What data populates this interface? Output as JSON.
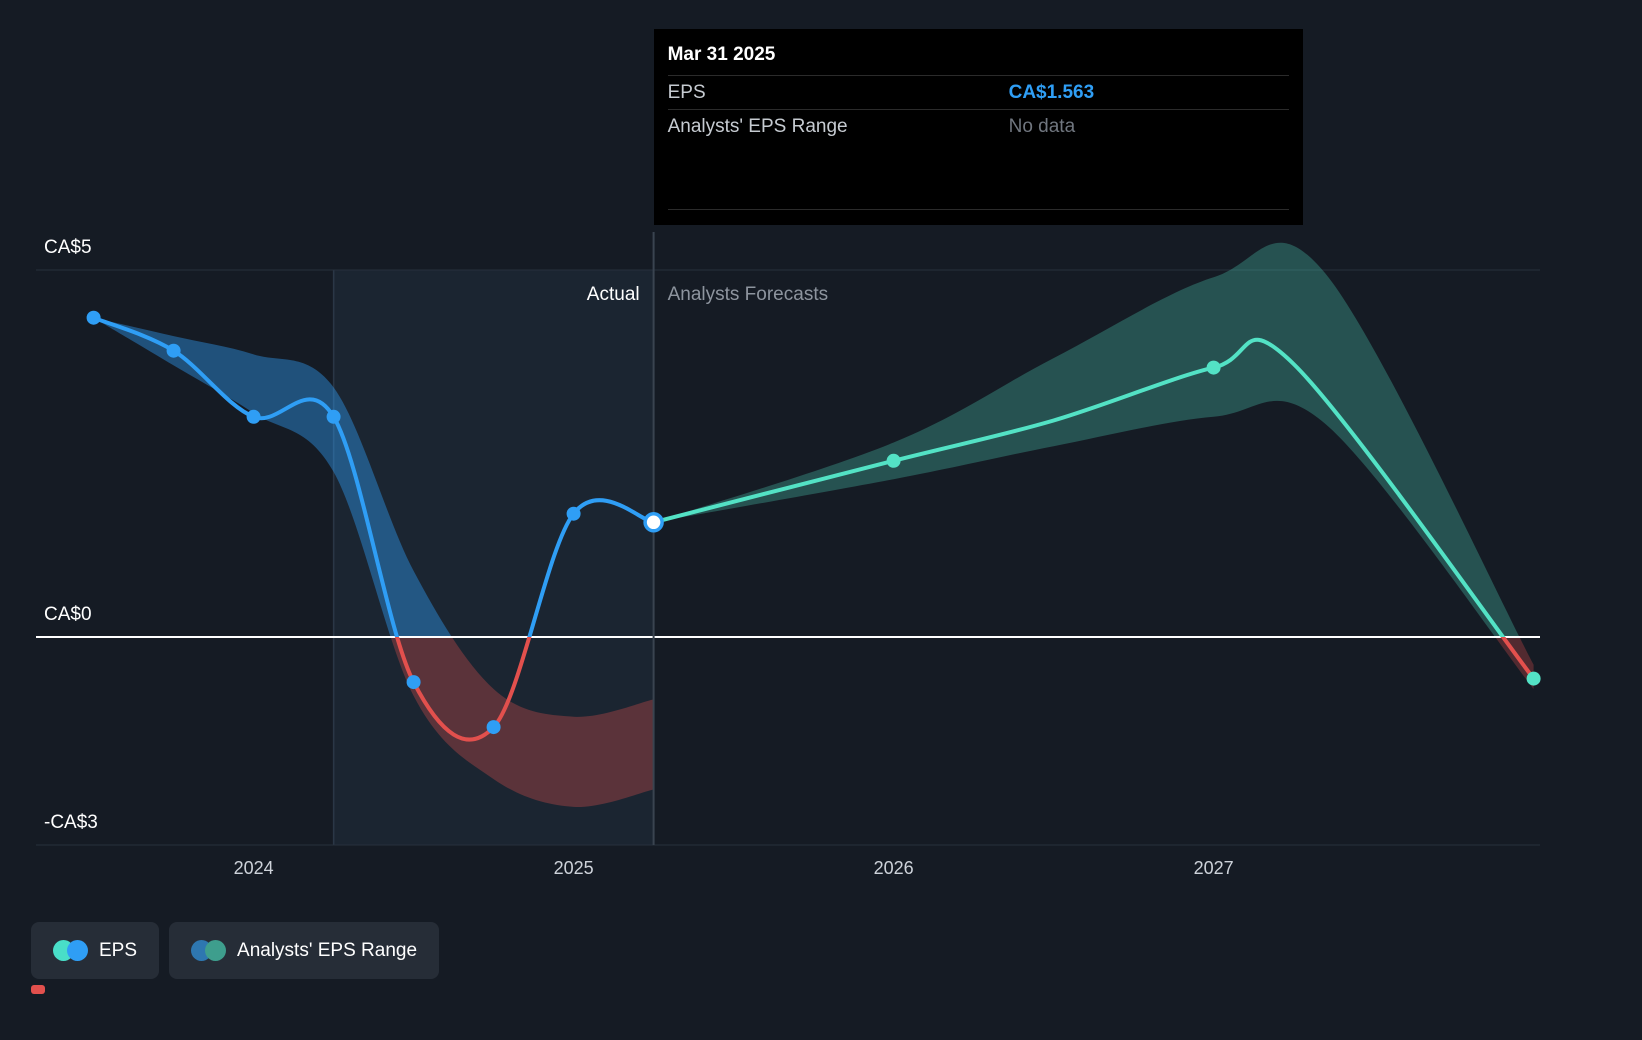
{
  "tooltip": {
    "date": "Mar 31 2025",
    "rows": [
      {
        "label": "EPS",
        "value": "CA$1.563"
      },
      {
        "label": "Analysts' EPS Range",
        "value": "No data"
      }
    ]
  },
  "annotations": {
    "actual": "Actual",
    "forecast": "Analysts Forecasts"
  },
  "legend": [
    {
      "label": "EPS",
      "dot_colors": [
        "#49dec8",
        "#2f9ef5"
      ]
    },
    {
      "label": "Analysts' EPS Range",
      "dot_colors": [
        "#2e77b0",
        "#3e9e8d"
      ]
    }
  ],
  "colors": {
    "background": "#151b24",
    "eps_line": "#2f9ef5",
    "negative_line": "#e2504d",
    "forecast_line": "#53e2c5",
    "actual_band": "rgba(47,158,245,0.42)",
    "actual_band_negative": "rgba(226,80,77,0.32)",
    "forecast_band": "rgba(83,226,197,0.28)",
    "forecast_band_negative": "rgba(226,80,77,0.30)",
    "zero_line": "#ffffff",
    "gridline": "#27303d",
    "divider": "#3a4450",
    "highlight": "rgba(110,165,230,0.07)",
    "highlight_edge": "rgba(148,184,225,0.16)",
    "tooltip_value_blue": "#2f9ef5",
    "tooltip_muted": "#70767f"
  },
  "chart_data": {
    "type": "line",
    "title": "EPS actual vs analysts forecasts",
    "currency": "CA$",
    "x_domain": [
      2023.32,
      2028.02
    ],
    "y_max": 5,
    "y_min": -3,
    "x_ticks": [
      2024,
      2025,
      2026,
      2027
    ],
    "x_tick_labels": [
      "2024",
      "2025",
      "2026",
      "2027"
    ],
    "y_ticks": [
      {
        "value": 5,
        "label": "CA$5"
      },
      {
        "value": 0,
        "label": "CA$0"
      },
      {
        "value": -3,
        "label": "-CA$3"
      }
    ],
    "divider_x": 2025.25,
    "highlight_region": [
      2024.25,
      2025.25
    ],
    "current_point": {
      "date": "Mar 31 2025",
      "x": 2025.25,
      "eps": 1.563
    },
    "series": [
      {
        "name": "EPS",
        "role": "actual",
        "points": [
          {
            "x": 2023.5,
            "y": 4.35,
            "dot": true
          },
          {
            "x": 2023.75,
            "y": 3.9,
            "dot": true
          },
          {
            "x": 2024.0,
            "y": 3.0,
            "dot": true
          },
          {
            "x": 2024.25,
            "y": 3.0,
            "dot": true
          },
          {
            "x": 2024.5,
            "y": -0.65,
            "dot": true
          },
          {
            "x": 2024.75,
            "y": -1.3,
            "dot": true
          },
          {
            "x": 2025.0,
            "y": 1.68,
            "dot": true
          },
          {
            "x": 2025.25,
            "y": 1.563,
            "dot": "current"
          }
        ]
      },
      {
        "name": "EPS forecast",
        "role": "forecast",
        "points": [
          {
            "x": 2025.25,
            "y": 1.563
          },
          {
            "x": 2026.0,
            "y": 2.4,
            "dot": true
          },
          {
            "x": 2026.5,
            "y": 2.95
          },
          {
            "x": 2027.0,
            "y": 3.67,
            "dot": true
          },
          {
            "x": 2027.25,
            "y": 3.72
          },
          {
            "x": 2028.0,
            "y": -0.6,
            "dot": true
          }
        ]
      }
    ],
    "bands": [
      {
        "name": "actual-analyst-range",
        "points": [
          {
            "x": 2023.5,
            "hi": 4.35,
            "lo": 4.35
          },
          {
            "x": 2023.75,
            "hi": 4.1,
            "lo": 3.7
          },
          {
            "x": 2024.0,
            "hi": 3.85,
            "lo": 3.05
          },
          {
            "x": 2024.25,
            "hi": 3.4,
            "lo": 2.25
          },
          {
            "x": 2024.5,
            "hi": 0.9,
            "lo": -0.85
          },
          {
            "x": 2024.75,
            "hi": -0.75,
            "lo": -2.05
          },
          {
            "x": 2025.0,
            "hi": -1.15,
            "lo": -2.45
          },
          {
            "x": 2025.25,
            "hi": -0.9,
            "lo": -2.2
          }
        ]
      },
      {
        "name": "forecast-analyst-range",
        "points": [
          {
            "x": 2025.25,
            "hi": 1.563,
            "lo": 1.563
          },
          {
            "x": 2026.0,
            "hi": 2.65,
            "lo": 2.15
          },
          {
            "x": 2026.5,
            "hi": 3.8,
            "lo": 2.6
          },
          {
            "x": 2027.0,
            "hi": 4.9,
            "lo": 3.0
          },
          {
            "x": 2027.35,
            "hi": 4.95,
            "lo": 2.9
          },
          {
            "x": 2028.0,
            "hi": -0.4,
            "lo": -0.75
          }
        ]
      }
    ]
  }
}
